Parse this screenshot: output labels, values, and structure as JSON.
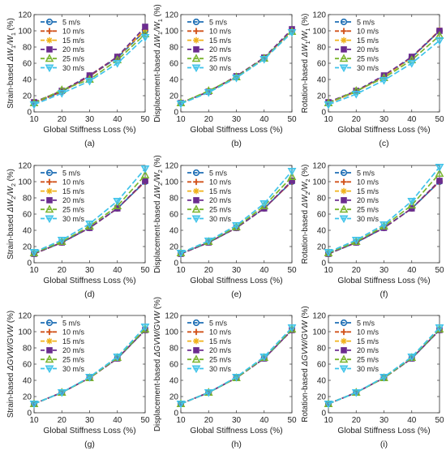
{
  "series_style": [
    {
      "name": "5 m/s",
      "color": "#1f6fb5",
      "marker": "circle"
    },
    {
      "name": "10 m/s",
      "color": "#d1521a",
      "marker": "plus"
    },
    {
      "name": "15 m/s",
      "color": "#f0b21a",
      "marker": "star"
    },
    {
      "name": "20 m/s",
      "color": "#6b2c8f",
      "marker": "square"
    },
    {
      "name": "25 m/s",
      "color": "#7ab52f",
      "marker": "triangle-up"
    },
    {
      "name": "30 m/s",
      "color": "#3fc3ea",
      "marker": "triangle-down"
    }
  ],
  "chart_data": [
    {
      "type": "line",
      "caption": "(a)",
      "ylabel_prefix": "Strain-based ",
      "ylabel_main": "ΔW",
      "ylabel_sub1": "1",
      "ylabel_mid": "/W",
      "ylabel_sub2": "1",
      "ylabel_unit": " (%)",
      "xlabel": "Global Stiffness Loss (%)",
      "xlim": [
        10,
        50
      ],
      "ylim": [
        0,
        120
      ],
      "x": [
        10,
        20,
        30,
        40,
        50
      ],
      "xticks": [
        "10",
        "20",
        "30",
        "40",
        "50"
      ],
      "yticks": [
        "0",
        "20",
        "40",
        "60",
        "80",
        "100",
        "120"
      ],
      "legend_position": "upper-left",
      "series": [
        {
          "name": "5 m/s",
          "values": [
            11,
            25,
            44,
            67,
            100
          ]
        },
        {
          "name": "10 m/s",
          "values": [
            11,
            25,
            44,
            68,
            101
          ]
        },
        {
          "name": "15 m/s",
          "values": [
            12,
            26,
            45,
            68,
            102
          ]
        },
        {
          "name": "20 m/s",
          "values": [
            12,
            26,
            45,
            68,
            105
          ]
        },
        {
          "name": "25 m/s",
          "values": [
            11,
            27,
            40,
            64,
            96
          ]
        },
        {
          "name": "30 m/s",
          "values": [
            9,
            23,
            38,
            60,
            92
          ]
        }
      ]
    },
    {
      "type": "line",
      "caption": "(b)",
      "ylabel_prefix": "Displacement-based ",
      "ylabel_main": "ΔW",
      "ylabel_sub1": "1",
      "ylabel_mid": "/W",
      "ylabel_sub2": "1",
      "ylabel_unit": " (%)",
      "xlabel": "Global Stiffness Loss (%)",
      "xlim": [
        10,
        50
      ],
      "ylim": [
        0,
        120
      ],
      "x": [
        10,
        20,
        30,
        40,
        50
      ],
      "xticks": [
        "10",
        "20",
        "30",
        "40",
        "50"
      ],
      "yticks": [
        "0",
        "20",
        "40",
        "60",
        "80",
        "100",
        "120"
      ],
      "legend_position": "upper-left",
      "series": [
        {
          "name": "5 m/s",
          "values": [
            11,
            25,
            43,
            66,
            100
          ]
        },
        {
          "name": "10 m/s",
          "values": [
            11,
            25,
            43,
            66,
            101
          ]
        },
        {
          "name": "15 m/s",
          "values": [
            11,
            25,
            44,
            67,
            101
          ]
        },
        {
          "name": "20 m/s",
          "values": [
            11,
            25,
            44,
            67,
            102
          ]
        },
        {
          "name": "25 m/s",
          "values": [
            11,
            26,
            43,
            66,
            99
          ]
        },
        {
          "name": "30 m/s",
          "values": [
            10,
            24,
            42,
            65,
            98
          ]
        }
      ]
    },
    {
      "type": "line",
      "caption": "(c)",
      "ylabel_prefix": "Rotation-based ",
      "ylabel_main": "ΔW",
      "ylabel_sub1": "1",
      "ylabel_mid": "/W",
      "ylabel_sub2": "1",
      "ylabel_unit": " (%)",
      "xlabel": "Global Stiffness Loss (%)",
      "xlim": [
        10,
        50
      ],
      "ylim": [
        0,
        120
      ],
      "x": [
        10,
        20,
        30,
        40,
        50
      ],
      "xticks": [
        "10",
        "20",
        "30",
        "40",
        "50"
      ],
      "yticks": [
        "0",
        "20",
        "40",
        "60",
        "80",
        "100",
        "120"
      ],
      "legend_position": "upper-left",
      "series": [
        {
          "name": "5 m/s",
          "values": [
            11,
            25,
            44,
            67,
            100
          ]
        },
        {
          "name": "10 m/s",
          "values": [
            11,
            25,
            44,
            67,
            100
          ]
        },
        {
          "name": "15 m/s",
          "values": [
            11,
            25,
            44,
            67,
            101
          ]
        },
        {
          "name": "20 m/s",
          "values": [
            12,
            26,
            45,
            68,
            100
          ]
        },
        {
          "name": "25 m/s",
          "values": [
            11,
            26,
            42,
            64,
            94
          ]
        },
        {
          "name": "30 m/s",
          "values": [
            9,
            22,
            39,
            60,
            88
          ]
        }
      ]
    },
    {
      "type": "line",
      "caption": "(d)",
      "ylabel_prefix": "Strain-based ",
      "ylabel_main": "ΔW",
      "ylabel_sub1": "2",
      "ylabel_mid": "/W",
      "ylabel_sub2": "2",
      "ylabel_unit": " (%)",
      "xlabel": "Global Stiffness Loss (%)",
      "xlim": [
        10,
        50
      ],
      "ylim": [
        0,
        120
      ],
      "x": [
        10,
        20,
        30,
        40,
        50
      ],
      "xticks": [
        "10",
        "20",
        "30",
        "40",
        "50"
      ],
      "yticks": [
        "0",
        "20",
        "40",
        "60",
        "80",
        "100",
        "120"
      ],
      "legend_position": "upper-left",
      "series": [
        {
          "name": "5 m/s",
          "values": [
            11,
            25,
            43,
            67,
            100
          ]
        },
        {
          "name": "10 m/s",
          "values": [
            11,
            25,
            43,
            67,
            100
          ]
        },
        {
          "name": "15 m/s",
          "values": [
            11,
            25,
            43,
            67,
            101
          ]
        },
        {
          "name": "20 m/s",
          "values": [
            11,
            25,
            43,
            67,
            101
          ]
        },
        {
          "name": "25 m/s",
          "values": [
            12,
            26,
            45,
            70,
            108
          ]
        },
        {
          "name": "30 m/s",
          "values": [
            13,
            28,
            48,
            76,
            116
          ]
        }
      ]
    },
    {
      "type": "line",
      "caption": "(e)",
      "ylabel_prefix": "Displacement-based ",
      "ylabel_main": "ΔW",
      "ylabel_sub1": "2",
      "ylabel_mid": "/W",
      "ylabel_sub2": "2",
      "ylabel_unit": " (%)",
      "xlabel": "Global Stiffness Loss (%)",
      "xlim": [
        10,
        50
      ],
      "ylim": [
        0,
        120
      ],
      "x": [
        10,
        20,
        30,
        40,
        50
      ],
      "xticks": [
        "10",
        "20",
        "30",
        "40",
        "50"
      ],
      "yticks": [
        "0",
        "20",
        "40",
        "60",
        "80",
        "100",
        "120"
      ],
      "legend_position": "upper-left",
      "series": [
        {
          "name": "5 m/s",
          "values": [
            11,
            25,
            43,
            67,
            100
          ]
        },
        {
          "name": "10 m/s",
          "values": [
            11,
            25,
            43,
            67,
            100
          ]
        },
        {
          "name": "15 m/s",
          "values": [
            11,
            25,
            43,
            67,
            101
          ]
        },
        {
          "name": "20 m/s",
          "values": [
            11,
            25,
            43,
            67,
            101
          ]
        },
        {
          "name": "25 m/s",
          "values": [
            12,
            26,
            44,
            70,
            106
          ]
        },
        {
          "name": "30 m/s",
          "values": [
            12,
            27,
            46,
            73,
            113
          ]
        }
      ]
    },
    {
      "type": "line",
      "caption": "(f)",
      "ylabel_prefix": "Rotation-based ",
      "ylabel_main": "ΔW",
      "ylabel_sub1": "2",
      "ylabel_mid": "/W",
      "ylabel_sub2": "2",
      "ylabel_unit": " (%)",
      "xlabel": "Global Stiffness Loss (%)",
      "xlim": [
        10,
        50
      ],
      "ylim": [
        0,
        120
      ],
      "x": [
        10,
        20,
        30,
        40,
        50
      ],
      "xticks": [
        "10",
        "20",
        "30",
        "40",
        "50"
      ],
      "yticks": [
        "0",
        "20",
        "40",
        "60",
        "80",
        "100",
        "120"
      ],
      "legend_position": "upper-left",
      "series": [
        {
          "name": "5 m/s",
          "values": [
            11,
            25,
            43,
            67,
            100
          ]
        },
        {
          "name": "10 m/s",
          "values": [
            11,
            25,
            43,
            67,
            100
          ]
        },
        {
          "name": "15 m/s",
          "values": [
            11,
            25,
            43,
            67,
            101
          ]
        },
        {
          "name": "20 m/s",
          "values": [
            11,
            25,
            43,
            67,
            101
          ]
        },
        {
          "name": "25 m/s",
          "values": [
            12,
            26,
            45,
            71,
            110
          ]
        },
        {
          "name": "30 m/s",
          "values": [
            13,
            28,
            47,
            76,
            118
          ]
        }
      ]
    },
    {
      "type": "line",
      "caption": "(g)",
      "ylabel_prefix": "Strain-based ",
      "ylabel_main": "ΔGVW/GVW",
      "ylabel_sub1": "",
      "ylabel_mid": "",
      "ylabel_sub2": "",
      "ylabel_unit": " (%)",
      "xlabel": "Global Stiffness Loss (%)",
      "xlim": [
        10,
        50
      ],
      "ylim": [
        0,
        120
      ],
      "x": [
        10,
        20,
        30,
        40,
        50
      ],
      "xticks": [
        "10",
        "20",
        "30",
        "40",
        "50"
      ],
      "yticks": [
        "0",
        "20",
        "40",
        "60",
        "80",
        "100",
        "120"
      ],
      "legend_position": "upper-left",
      "series": [
        {
          "name": "5 m/s",
          "values": [
            11,
            25,
            43,
            67,
            102
          ]
        },
        {
          "name": "10 m/s",
          "values": [
            11,
            25,
            43,
            67,
            102
          ]
        },
        {
          "name": "15 m/s",
          "values": [
            11,
            25,
            43,
            67,
            102
          ]
        },
        {
          "name": "20 m/s",
          "values": [
            11,
            25,
            43,
            67,
            102
          ]
        },
        {
          "name": "25 m/s",
          "values": [
            11,
            25,
            43,
            68,
            103
          ]
        },
        {
          "name": "30 m/s",
          "values": [
            11,
            25,
            44,
            69,
            106
          ]
        }
      ]
    },
    {
      "type": "line",
      "caption": "(h)",
      "ylabel_prefix": "Displacement-based ",
      "ylabel_main": "ΔGVW/GVW",
      "ylabel_sub1": "",
      "ylabel_mid": "",
      "ylabel_sub2": "",
      "ylabel_unit": " (%)",
      "xlabel": "Global Stiffness Loss (%)",
      "xlim": [
        10,
        50
      ],
      "ylim": [
        0,
        120
      ],
      "x": [
        10,
        20,
        30,
        40,
        50
      ],
      "xticks": [
        "10",
        "20",
        "30",
        "40",
        "50"
      ],
      "yticks": [
        "0",
        "20",
        "40",
        "60",
        "80",
        "100",
        "120"
      ],
      "legend_position": "upper-left",
      "series": [
        {
          "name": "5 m/s",
          "values": [
            11,
            25,
            43,
            67,
            102
          ]
        },
        {
          "name": "10 m/s",
          "values": [
            11,
            25,
            43,
            67,
            102
          ]
        },
        {
          "name": "15 m/s",
          "values": [
            11,
            25,
            43,
            67,
            102
          ]
        },
        {
          "name": "20 m/s",
          "values": [
            11,
            25,
            43,
            67,
            102
          ]
        },
        {
          "name": "25 m/s",
          "values": [
            11,
            25,
            43,
            68,
            103
          ]
        },
        {
          "name": "30 m/s",
          "values": [
            11,
            25,
            44,
            69,
            105
          ]
        }
      ]
    },
    {
      "type": "line",
      "caption": "(i)",
      "ylabel_prefix": "Rotation-based ",
      "ylabel_main": "ΔGVW/GVW",
      "ylabel_sub1": "",
      "ylabel_mid": "",
      "ylabel_sub2": "",
      "ylabel_unit": " (%)",
      "xlabel": "Global Stiffness Loss (%)",
      "xlim": [
        10,
        50
      ],
      "ylim": [
        0,
        120
      ],
      "x": [
        10,
        20,
        30,
        40,
        50
      ],
      "xticks": [
        "10",
        "20",
        "30",
        "40",
        "50"
      ],
      "yticks": [
        "0",
        "20",
        "40",
        "60",
        "80",
        "100",
        "120"
      ],
      "legend_position": "upper-left",
      "series": [
        {
          "name": "5 m/s",
          "values": [
            11,
            25,
            43,
            67,
            102
          ]
        },
        {
          "name": "10 m/s",
          "values": [
            11,
            25,
            43,
            67,
            102
          ]
        },
        {
          "name": "15 m/s",
          "values": [
            11,
            25,
            43,
            67,
            102
          ]
        },
        {
          "name": "20 m/s",
          "values": [
            11,
            25,
            43,
            67,
            102
          ]
        },
        {
          "name": "25 m/s",
          "values": [
            11,
            25,
            43,
            68,
            103
          ]
        },
        {
          "name": "30 m/s",
          "values": [
            11,
            25,
            44,
            69,
            105
          ]
        }
      ]
    }
  ]
}
